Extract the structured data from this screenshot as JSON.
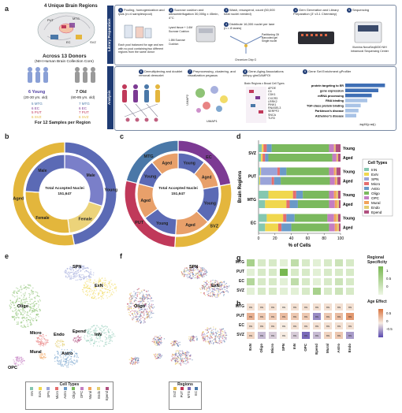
{
  "panels": {
    "a": "a",
    "b": "b",
    "c": "c",
    "d": "d",
    "e": "e",
    "f": "f",
    "g": "g",
    "h": "h"
  },
  "panel_a": {
    "title": "4 Unique Brain Regions",
    "region_tags": [
      "MTG",
      "EC",
      "PUT",
      "SVZ"
    ],
    "donors_title": "Across 13 Donors",
    "donors_sub": "(NIH Human Brain Collection Core)",
    "young_label": "6 Young",
    "young_age": "(20-30 yrs. old)",
    "old_label": "7 Old",
    "old_age": "(60-85 yrs. old)",
    "young_regions": [
      "5 MTG",
      "6 EC",
      "5 PUT",
      "6 SVZ"
    ],
    "old_regions": [
      "7 MTG",
      "6 EC",
      "7 PUT",
      "6 SVZ"
    ],
    "samples": "For 12 Samples per Region",
    "library_side": "Library Preparation",
    "analysis_side": "Analysis",
    "steps": [
      {
        "n": "1",
        "text": "Pooling, homogenization and lysis (n=4 samples/pool)"
      },
      {
        "n": "2",
        "text": "Sucrose cushion and ultracentrifugation 30,000g x 45min, 4°C"
      },
      {
        "n": "3",
        "text": "Wash, resuspend, count (50,000 total nuclei needed)"
      },
      {
        "n": "4",
        "text": "Gem Generation and Library Preparation (3' v3.1 Chemistry)"
      },
      {
        "n": "5",
        "text": "Sequencing"
      }
    ],
    "step1_note": "Each pool balanced for age and sex with no pool containing two different regions from the same donor",
    "step2_labels": [
      "Lysed tissue + 1.6M Sucrose Cushion",
      "1.8M Sucrose Cushion"
    ],
    "step4b": {
      "n": "4",
      "text": "Distribute 16,000 nuclei per lane (n = 8 lanes)"
    },
    "step4_labels": [
      "Partitioning Oil",
      "Barcoded gel",
      "Single nuclei"
    ],
    "chip": "Chromium Chip G",
    "sequencer": "Illumina NovaSeq6000 NIH Intramural Sequencing Center",
    "analysis_steps": [
      {
        "n": "6",
        "text": "Demultiplexing and doublet removal demuxlet"
      },
      {
        "n": "7",
        "text": "Preprocessing, clustering, and visualization pegasus"
      },
      {
        "n": "8",
        "text": "Gene-Aging Associations diffxpy glmGAMPOI"
      },
      {
        "n": "9",
        "text": "Gene Set Enrichment gProfiler"
      }
    ],
    "umap_label": "UMAP1",
    "umap_label2": "UMAP2",
    "brain_region_box": "Brain Regions x Broad Cell Types",
    "genes": [
      "APOE",
      "C4",
      "CDK1",
      "CXCR3",
      "LRRK2",
      "PINK1",
      "RNASEL3",
      "SERPF2",
      "SNCA",
      "TLR3"
    ],
    "gsea_terms": [
      "protein targeting to ER",
      "gene expression",
      "mRNA processing",
      "RNA binding",
      "TGF-class protein binding",
      "Parkinson's disease",
      "Alzheimer's disease"
    ],
    "gsea_values": [
      9,
      7.5,
      6,
      5,
      3.5,
      3,
      2.5
    ],
    "gsea_axis": "-log10(p adj.)"
  },
  "panel_b": {
    "center_title": "Total Accepted Nuclei",
    "center_value": "151,647",
    "outer": [
      {
        "label": "Young",
        "value": 47,
        "color": "#5b6ab5"
      },
      {
        "label": "Aged",
        "value": 53,
        "color": "#e3b63c"
      }
    ],
    "inner": [
      {
        "label": "Male",
        "value": 30,
        "color": "#7a7fc9"
      },
      {
        "label": "Female",
        "value": 18,
        "color": "#ecd37a"
      },
      {
        "label": "Female",
        "value": 28,
        "color": "#e3b63c"
      },
      {
        "label": "Male",
        "value": 24,
        "color": "#5b6ab5"
      }
    ]
  },
  "panel_c": {
    "center_title": "Total Accepted Nuclei",
    "center_value": "151,647",
    "outer": [
      {
        "label": "EC",
        "value": 22,
        "color": "#7c3a93"
      },
      {
        "label": "SVZ",
        "value": 29,
        "color": "#e4b63d"
      },
      {
        "label": "PUT",
        "value": 28,
        "color": "#c0395a"
      },
      {
        "label": "MTG",
        "value": 21,
        "color": "#4a78a8"
      }
    ],
    "inner": [
      {
        "label": "Young",
        "value": 11,
        "color": "#5b6ab5"
      },
      {
        "label": "Aged",
        "value": 11,
        "color": "#e8a06a"
      },
      {
        "label": "Young",
        "value": 15,
        "color": "#5b6ab5"
      },
      {
        "label": "Aged",
        "value": 14,
        "color": "#e8a06a"
      },
      {
        "label": "Young",
        "value": 14,
        "color": "#5b6ab5"
      },
      {
        "label": "Aged",
        "value": 14,
        "color": "#e8a06a"
      },
      {
        "label": "Young",
        "value": 10,
        "color": "#5b6ab5"
      },
      {
        "label": "Aged",
        "value": 11,
        "color": "#e8a06a"
      }
    ]
  },
  "chart_data": {
    "type": "bar",
    "orientation": "horizontal",
    "stacked": true,
    "ylabel": "Brain Regions",
    "xlabel": "% of Cells",
    "xlim": [
      0,
      100
    ],
    "xticks": [
      0,
      20,
      40,
      60,
      80,
      100
    ],
    "legend_title": "Cell Types",
    "legend_position": "right",
    "bars": [
      {
        "region": "SVZ",
        "age": "Young",
        "values": [
          4,
          2,
          0,
          4,
          6,
          70,
          6,
          1,
          1,
          6
        ]
      },
      {
        "region": "SVZ",
        "age": "Aged",
        "values": [
          3,
          2,
          0,
          3,
          4,
          78,
          5,
          1,
          1,
          3
        ]
      },
      {
        "region": "PUT",
        "age": "Young",
        "values": [
          2,
          1,
          20,
          3,
          8,
          52,
          6,
          2,
          1,
          5
        ]
      },
      {
        "region": "PUT",
        "age": "Aged",
        "values": [
          1,
          1,
          14,
          3,
          8,
          60,
          6,
          2,
          1,
          4
        ]
      },
      {
        "region": "MTG",
        "age": "Young",
        "values": [
          12,
          30,
          0,
          4,
          8,
          32,
          6,
          3,
          2,
          3
        ]
      },
      {
        "region": "MTG",
        "age": "Aged",
        "values": [
          8,
          26,
          0,
          4,
          10,
          38,
          7,
          3,
          2,
          2
        ]
      },
      {
        "region": "EC",
        "age": "Young",
        "values": [
          10,
          20,
          0,
          4,
          10,
          40,
          8,
          3,
          2,
          3
        ]
      },
      {
        "region": "EC",
        "age": "Aged",
        "values": [
          8,
          16,
          0,
          4,
          12,
          46,
          7,
          3,
          2,
          2
        ]
      }
    ],
    "series": [
      {
        "name": "InN",
        "color": "#85c7b0"
      },
      {
        "name": "ExN",
        "color": "#f0d74e"
      },
      {
        "name": "SPN",
        "color": "#9aa4d9"
      },
      {
        "name": "Micro",
        "color": "#e56e6e"
      },
      {
        "name": "Astro",
        "color": "#6a9ac8"
      },
      {
        "name": "Oligo",
        "color": "#7bb95e"
      },
      {
        "name": "OPC",
        "color": "#c47ec2"
      },
      {
        "name": "Mural",
        "color": "#f2a35a"
      },
      {
        "name": "Endo",
        "color": "#e3cd6f"
      },
      {
        "name": "Epend",
        "color": "#b0507f"
      }
    ]
  },
  "panel_e": {
    "labels": [
      "SPN",
      "ExN",
      "Oligo",
      "Micro",
      "Endo",
      "Epend",
      "InN",
      "Mural",
      "Astro",
      "OPC"
    ],
    "legend_title": "Cell Types",
    "legend_items": [
      "InN",
      "ExN",
      "SPN",
      "Micro",
      "Astro",
      "Oligo",
      "OPC",
      "Mural",
      "Endo",
      "Epend"
    ]
  },
  "panel_f": {
    "labels": [
      "SPN",
      "ExN",
      "Oligo"
    ],
    "legend_title": "Regions",
    "legend_items": [
      "SVZ",
      "PUT",
      "MTG",
      "EC"
    ],
    "legend_colors": [
      "#e4b63d",
      "#c0395a",
      "#7c6ab5",
      "#4a78a8"
    ]
  },
  "panel_g": {
    "title": "Regional Specificity",
    "rows": [
      "MTG",
      "PUT",
      "EC",
      "SVZ"
    ],
    "cols": [
      "ExN",
      "Oligo",
      "Micro",
      "SPN",
      "InN",
      "OPC",
      "Epend",
      "Mural",
      "Astro",
      "Endo"
    ],
    "values": [
      [
        0.6,
        0.2,
        0.2,
        0.1,
        0.4,
        0.2,
        0.1,
        0.2,
        0.3,
        0.2
      ],
      [
        0.1,
        0.2,
        0.2,
        1.0,
        0.2,
        0.2,
        0.1,
        0.2,
        0.2,
        0.2
      ],
      [
        0.5,
        0.2,
        0.2,
        0.1,
        0.4,
        0.2,
        0.1,
        0.2,
        0.3,
        0.2
      ],
      [
        0.1,
        0.2,
        0.2,
        0.1,
        0.1,
        0.2,
        0.6,
        0.2,
        0.3,
        0.2
      ]
    ],
    "scale_ticks": [
      "1",
      "0.5",
      "0"
    ]
  },
  "panel_h": {
    "title": "Age Effect",
    "rows": [
      "MTG",
      "PUT",
      "EC",
      "SVZ"
    ],
    "cols": [
      "ExN",
      "Oligo",
      "Micro",
      "SPN",
      "InN",
      "OPC",
      "Epend",
      "Mural",
      "Astro",
      "Endo"
    ],
    "cell_text": "ns",
    "values": [
      [
        0.1,
        0.1,
        0.1,
        0.0,
        0.1,
        0.1,
        0.1,
        0.1,
        0.1,
        0.1
      ],
      [
        0.5,
        0.3,
        0.3,
        0.4,
        0.3,
        0.3,
        -0.6,
        0.3,
        0.4,
        0.7
      ],
      [
        0.1,
        0.1,
        0.1,
        0.0,
        0.1,
        0.1,
        0.1,
        0.1,
        0.1,
        0.1
      ],
      [
        0.2,
        -0.3,
        -0.2,
        0.0,
        -0.2,
        -0.8,
        -0.3,
        0.2,
        0.3,
        -0.5
      ]
    ],
    "scale_ticks": [
      "0.5",
      "0",
      "-0.5"
    ]
  }
}
